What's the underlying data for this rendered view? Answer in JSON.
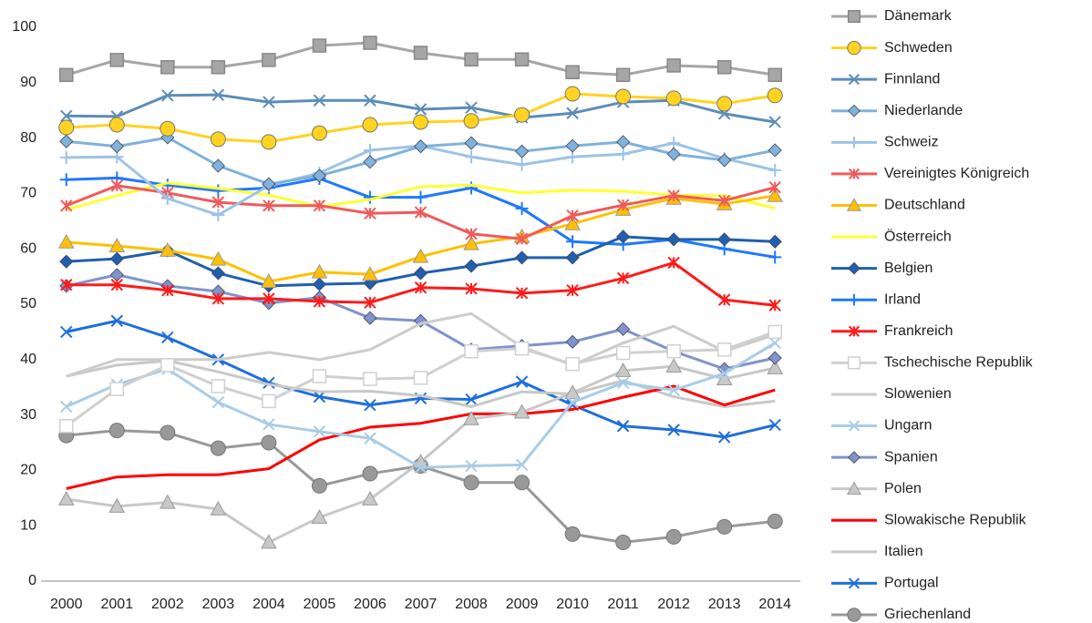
{
  "chart_data": {
    "type": "line",
    "categories": [
      "2000",
      "2001",
      "2002",
      "2003",
      "2004",
      "2005",
      "2006",
      "2007",
      "2008",
      "2009",
      "2010",
      "2011",
      "2012",
      "2013",
      "2014"
    ],
    "ylim": [
      0,
      100
    ],
    "yticks": [
      0,
      10,
      20,
      30,
      40,
      50,
      60,
      70,
      80,
      90,
      100
    ],
    "grid": false,
    "legend": "right",
    "series": [
      {
        "name": "Dänemark",
        "color": "#a6a6a6",
        "marker": "square",
        "values": [
          91.4,
          94.1,
          92.8,
          92.8,
          94.1,
          96.7,
          97.2,
          95.4,
          94.2,
          94.2,
          91.9,
          91.4,
          93.1,
          92.8,
          91.4
        ]
      },
      {
        "name": "Schweden",
        "color": "#ffd320",
        "marker": "circle",
        "values": [
          81.9,
          82.4,
          81.7,
          79.8,
          79.3,
          80.9,
          82.4,
          82.9,
          83.1,
          84.2,
          88.0,
          87.5,
          87.2,
          86.2,
          87.7
        ]
      },
      {
        "name": "Finnland",
        "color": "#5b8db8",
        "marker": "x",
        "values": [
          84.0,
          83.9,
          87.7,
          87.8,
          86.5,
          86.8,
          86.8,
          85.2,
          85.5,
          83.7,
          84.5,
          86.5,
          86.8,
          84.4,
          82.9
        ]
      },
      {
        "name": "Niederlande",
        "color": "#7fb2dc",
        "marker": "diamond",
        "values": [
          79.4,
          78.5,
          80.1,
          75.0,
          71.7,
          73.2,
          75.7,
          78.5,
          79.1,
          77.6,
          78.6,
          79.3,
          77.1,
          76.0,
          77.8
        ]
      },
      {
        "name": "Schweiz",
        "color": "#9dc3e6",
        "marker": "plus",
        "values": [
          76.5,
          76.6,
          69.1,
          66.1,
          71.4,
          73.7,
          77.8,
          78.6,
          76.6,
          75.2,
          76.6,
          77.1,
          79.1,
          76.3,
          74.2
        ]
      },
      {
        "name": "Vereinigtes Königreich",
        "color": "#f05a5a",
        "marker": "star",
        "values": [
          67.8,
          71.4,
          70.1,
          68.4,
          67.8,
          67.8,
          66.4,
          66.6,
          62.7,
          61.8,
          66.0,
          67.9,
          69.6,
          68.7,
          71.1
        ]
      },
      {
        "name": "Deutschland",
        "color": "#ffc000",
        "marker": "triangle",
        "values": [
          61.2,
          60.5,
          59.7,
          58.1,
          54.1,
          55.8,
          55.4,
          58.6,
          60.9,
          62.2,
          64.5,
          67.1,
          69.1,
          68.1,
          69.6
        ]
      },
      {
        "name": "Österreich",
        "color": "#ffff33",
        "marker": "none",
        "values": [
          67.1,
          69.6,
          71.9,
          70.9,
          69.7,
          67.6,
          68.9,
          71.2,
          71.5,
          70.1,
          70.6,
          70.4,
          69.7,
          69.6,
          67.3
        ]
      },
      {
        "name": "Belgien",
        "color": "#1f5fb0",
        "marker": "diamond",
        "values": [
          57.7,
          58.2,
          59.7,
          55.6,
          53.3,
          53.6,
          53.8,
          55.6,
          56.9,
          58.4,
          58.4,
          62.2,
          61.7,
          61.7,
          61.3
        ]
      },
      {
        "name": "Irland",
        "color": "#1f78ff",
        "marker": "plus",
        "values": [
          72.5,
          72.8,
          71.5,
          70.5,
          71.0,
          72.7,
          69.3,
          69.3,
          71.0,
          67.3,
          61.3,
          60.8,
          61.7,
          60.0,
          58.5
        ]
      },
      {
        "name": "Frankreich",
        "color": "#ff1a1a",
        "marker": "star",
        "values": [
          53.5,
          53.5,
          52.5,
          51.0,
          51.0,
          50.5,
          50.3,
          53.0,
          52.8,
          52.0,
          52.5,
          54.7,
          57.5,
          50.8,
          49.8
        ]
      },
      {
        "name": "Tschechische Republik",
        "color": "#d0d0d0",
        "marker": "open-square",
        "values": [
          28.0,
          34.7,
          39.0,
          35.2,
          32.5,
          37.0,
          36.5,
          36.7,
          41.5,
          42.0,
          39.2,
          41.2,
          41.5,
          41.8,
          45.0
        ]
      },
      {
        "name": "Slowenien",
        "color": "#cccccc",
        "marker": "none",
        "values": [
          37.0,
          40.0,
          40.0,
          40.0,
          41.3,
          40.0,
          41.8,
          46.5,
          48.3,
          42.3,
          39.0,
          43.0,
          46.0,
          41.5,
          44.5
        ]
      },
      {
        "name": "Ungarn",
        "color": "#a9cce8",
        "marker": "x",
        "values": [
          31.5,
          35.5,
          38.3,
          32.3,
          28.3,
          27.0,
          25.8,
          20.5,
          20.8,
          21.0,
          32.3,
          35.8,
          34.5,
          37.5,
          43.0
        ]
      },
      {
        "name": "Spanien",
        "color": "#7f93cc",
        "marker": "diamond",
        "values": [
          53.3,
          55.3,
          53.3,
          52.3,
          50.2,
          51.2,
          47.5,
          47.0,
          41.8,
          42.5,
          43.2,
          45.5,
          41.5,
          38.3,
          40.3
        ]
      },
      {
        "name": "Polen",
        "color": "#c8c8c8",
        "marker": "triangle",
        "values": [
          14.8,
          13.5,
          14.2,
          13.0,
          7.0,
          11.5,
          14.8,
          21.5,
          29.3,
          30.5,
          34.0,
          38.0,
          38.8,
          36.5,
          38.5
        ]
      },
      {
        "name": "Slowakische Republik",
        "color": "#ff0000",
        "marker": "none",
        "values": [
          16.7,
          18.8,
          19.2,
          19.2,
          20.3,
          25.5,
          27.8,
          28.5,
          30.2,
          30.2,
          31.0,
          33.2,
          35.2,
          31.8,
          34.5
        ]
      },
      {
        "name": "Italien",
        "color": "#c8c8c8",
        "marker": "none",
        "values": [
          37.0,
          39.0,
          39.8,
          37.8,
          35.5,
          34.2,
          34.3,
          33.5,
          31.5,
          34.2,
          33.8,
          36.2,
          33.3,
          31.5,
          32.5
        ]
      },
      {
        "name": "Portugal",
        "color": "#1e6fdc",
        "marker": "x",
        "values": [
          45.0,
          47.0,
          44.0,
          40.0,
          35.8,
          33.3,
          31.8,
          33.0,
          32.8,
          36.0,
          31.8,
          28.0,
          27.3,
          26.0,
          28.2
        ]
      },
      {
        "name": "Griechenland",
        "color": "#999999",
        "marker": "circle",
        "values": [
          26.3,
          27.2,
          26.8,
          24.0,
          25.0,
          17.2,
          19.4,
          20.8,
          17.8,
          17.8,
          8.5,
          7.0,
          8.0,
          9.8,
          10.8
        ]
      }
    ]
  }
}
